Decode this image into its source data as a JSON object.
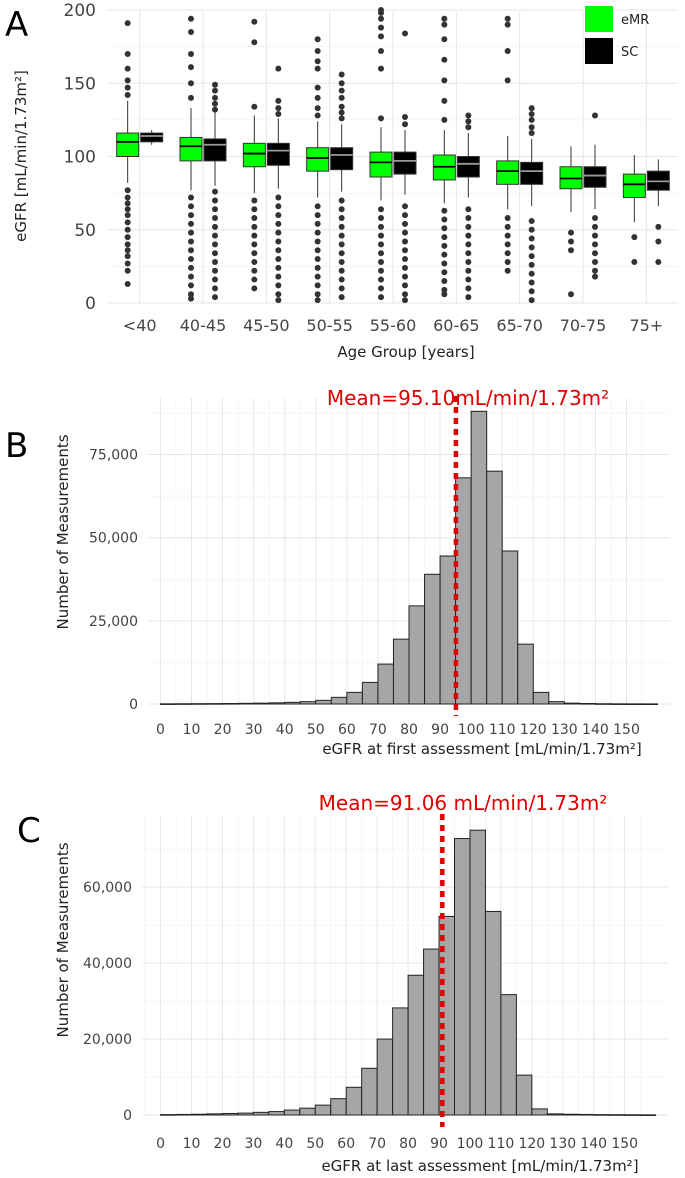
{
  "chart_data": [
    {
      "panel_label": "A",
      "type": "box",
      "xlabel": "Age Group [years]",
      "ylabel": "eGFR [mL/min/1.73m²]",
      "ylim": [
        0,
        200
      ],
      "yticks": [
        0,
        50,
        100,
        150,
        200
      ],
      "grid": true,
      "legend_position": "top-right",
      "colors": {
        "eMR": "#00ff00",
        "SC": "#000000",
        "median_on_eMR": "#000000",
        "median_on_SC": "#999999",
        "outlier": "#333333"
      },
      "categories": [
        "<40",
        "40-45",
        "45-50",
        "50-55",
        "55-60",
        "60-65",
        "65-70",
        "70-75",
        "75+"
      ],
      "series": [
        {
          "name": "eMR",
          "boxes": [
            {
              "whisker_low": 82,
              "q1": 100,
              "median": 110,
              "q3": 116,
              "whisker_high": 138,
              "outliers": [
                77,
                72,
                68,
                64,
                60,
                55,
                50,
                45,
                40,
                36,
                32,
                27,
                22,
                13,
                142,
                147,
                152,
                160,
                170,
                191
              ]
            },
            {
              "whisker_low": 77,
              "q1": 97,
              "median": 107,
              "q3": 113,
              "whisker_high": 133,
              "outliers": [
                72,
                66,
                60,
                54,
                48,
                42,
                36,
                30,
                24,
                18,
                12,
                6,
                3,
                140,
                150,
                161,
                170,
                185,
                194
              ]
            },
            {
              "whisker_low": 75,
              "q1": 93,
              "median": 102,
              "q3": 109,
              "whisker_high": 128,
              "outliers": [
                70,
                64,
                58,
                52,
                46,
                40,
                34,
                28,
                22,
                16,
                10,
                134,
                178,
                192
              ]
            },
            {
              "whisker_low": 72,
              "q1": 90,
              "median": 99,
              "q3": 106,
              "whisker_high": 124,
              "outliers": [
                66,
                60,
                54,
                48,
                42,
                36,
                30,
                24,
                18,
                12,
                6,
                2,
                128,
                133,
                140,
                147,
                160,
                165,
                172,
                180
              ]
            },
            {
              "whisker_low": 70,
              "q1": 86,
              "median": 96,
              "q3": 103,
              "whisker_high": 120,
              "outliers": [
                64,
                58,
                52,
                46,
                40,
                34,
                28,
                22,
                16,
                10,
                4,
                126,
                160,
                172,
                182,
                188,
                194,
                198,
                200
              ]
            },
            {
              "whisker_low": 68,
              "q1": 84,
              "median": 93,
              "q3": 101,
              "whisker_high": 118,
              "outliers": [
                63,
                57,
                51,
                45,
                39,
                33,
                27,
                21,
                15,
                9,
                6,
                125,
                138,
                152,
                166,
                180,
                190,
                194
              ]
            },
            {
              "whisker_low": 64,
              "q1": 81,
              "median": 90,
              "q3": 97,
              "whisker_high": 114,
              "outliers": [
                58,
                52,
                46,
                40,
                34,
                28,
                22,
                152,
                172,
                190,
                194
              ]
            },
            {
              "whisker_low": 62,
              "q1": 78,
              "median": 85,
              "q3": 93,
              "whisker_high": 107,
              "outliers": [
                48,
                42,
                36,
                6
              ]
            },
            {
              "whisker_low": 55,
              "q1": 72,
              "median": 81,
              "q3": 88,
              "whisker_high": 101,
              "outliers": [
                45,
                28
              ]
            }
          ]
        },
        {
          "name": "SC",
          "boxes": [
            {
              "whisker_low": 108,
              "q1": 110,
              "median": 114,
              "q3": 116,
              "whisker_high": 118,
              "outliers": []
            },
            {
              "whisker_low": 80,
              "q1": 97,
              "median": 108,
              "q3": 112,
              "whisker_high": 130,
              "outliers": [
                76,
                70,
                64,
                58,
                52,
                46,
                40,
                34,
                28,
                22,
                16,
                10,
                4,
                132,
                136,
                140,
                145,
                149
              ]
            },
            {
              "whisker_low": 78,
              "q1": 94,
              "median": 104,
              "q3": 109,
              "whisker_high": 126,
              "outliers": [
                72,
                66,
                60,
                54,
                48,
                42,
                36,
                30,
                24,
                18,
                12,
                6,
                2,
                129,
                133,
                138,
                160
              ]
            },
            {
              "whisker_low": 76,
              "q1": 91,
              "median": 101,
              "q3": 106,
              "whisker_high": 122,
              "outliers": [
                70,
                64,
                58,
                52,
                46,
                40,
                34,
                28,
                22,
                16,
                10,
                4,
                126,
                130,
                134,
                140,
                145,
                150,
                156
              ]
            },
            {
              "whisker_low": 74,
              "q1": 88,
              "median": 97,
              "q3": 103,
              "whisker_high": 118,
              "outliers": [
                66,
                60,
                54,
                48,
                42,
                36,
                30,
                24,
                18,
                12,
                6,
                2,
                122,
                127,
                184
              ]
            },
            {
              "whisker_low": 72,
              "q1": 86,
              "median": 95,
              "q3": 100,
              "whisker_high": 116,
              "outliers": [
                64,
                58,
                52,
                46,
                40,
                34,
                28,
                22,
                16,
                10,
                4,
                120,
                124,
                128
              ]
            },
            {
              "whisker_low": 66,
              "q1": 81,
              "median": 90,
              "q3": 96,
              "whisker_high": 112,
              "outliers": [
                56,
                50,
                44,
                38,
                32,
                26,
                20,
                14,
                8,
                2,
                116,
                120,
                125,
                129,
                133
              ]
            },
            {
              "whisker_low": 64,
              "q1": 79,
              "median": 87,
              "q3": 93,
              "whisker_high": 108,
              "outliers": [
                58,
                52,
                46,
                40,
                34,
                28,
                22,
                18,
                128
              ]
            },
            {
              "whisker_low": 66,
              "q1": 77,
              "median": 83,
              "q3": 90,
              "whisker_high": 98,
              "outliers": [
                52,
                42,
                28
              ]
            }
          ]
        }
      ]
    },
    {
      "panel_label": "B",
      "type": "bar",
      "title": "Mean=95.10mL/min/1.73m²",
      "mean_value": 95.1,
      "xlabel": "eGFR at first assessment [mL/min/1.73m²]",
      "ylabel": "Number of Measurements",
      "xlim": [
        -4,
        164
      ],
      "ylim": [
        0,
        92000
      ],
      "xticks": [
        0,
        10,
        20,
        30,
        40,
        50,
        60,
        70,
        80,
        90,
        100,
        110,
        120,
        130,
        140,
        150
      ],
      "xtick_labels": [
        "0",
        "10",
        "20",
        "30",
        "40",
        "50",
        "60",
        "70",
        "80",
        "90",
        "100",
        "110",
        "120",
        "130",
        "140",
        "150"
      ],
      "yticks": [
        0,
        25000,
        50000,
        75000
      ],
      "ytick_labels": [
        "0",
        "25,000",
        "50,000",
        "75,000"
      ],
      "grid": true,
      "bin_width": 5,
      "bin_starts": [
        0,
        5,
        10,
        15,
        20,
        25,
        30,
        35,
        40,
        45,
        50,
        55,
        60,
        65,
        70,
        75,
        80,
        85,
        90,
        95,
        100,
        105,
        110,
        115,
        120,
        125,
        130,
        135,
        140,
        145,
        150,
        155
      ],
      "values": [
        50,
        80,
        100,
        120,
        150,
        200,
        250,
        350,
        500,
        700,
        1100,
        2000,
        3500,
        6500,
        12000,
        19500,
        29500,
        39000,
        44500,
        68000,
        88000,
        70000,
        46000,
        18000,
        3500,
        700,
        250,
        150,
        80,
        50,
        40,
        30
      ],
      "colors": {
        "bar_fill": "#a6a6a6",
        "bar_stroke": "#222222",
        "mean_line": "#e00000"
      }
    },
    {
      "panel_label": "C",
      "type": "bar",
      "title": "Mean=91.06 mL/min/1.73m²",
      "mean_value": 91.06,
      "xlabel": "eGFR at last assessment [mL/min/1.73m²]",
      "ylabel": "Number of Measurements",
      "xlim": [
        -6,
        164
      ],
      "ylim": [
        0,
        79000
      ],
      "xticks": [
        0,
        10,
        20,
        30,
        40,
        50,
        60,
        70,
        80,
        90,
        100,
        110,
        120,
        130,
        140,
        150
      ],
      "xtick_labels": [
        "0",
        "10",
        "20",
        "30",
        "40",
        "50",
        "60",
        "70",
        "80",
        "90",
        "100",
        "110",
        "120",
        "130",
        "140",
        "150"
      ],
      "yticks": [
        0,
        20000,
        40000,
        60000
      ],
      "ytick_labels": [
        "0",
        "20,000",
        "40,000",
        "60,000"
      ],
      "grid": true,
      "bin_width": 5,
      "bin_starts": [
        0,
        5,
        10,
        15,
        20,
        25,
        30,
        35,
        40,
        45,
        50,
        55,
        60,
        65,
        70,
        75,
        80,
        85,
        90,
        95,
        100,
        105,
        110,
        115,
        120,
        125,
        130,
        135,
        140,
        145,
        150,
        155
      ],
      "values": [
        100,
        150,
        200,
        300,
        400,
        500,
        700,
        900,
        1300,
        1800,
        2600,
        4300,
        7300,
        12300,
        20000,
        28200,
        36800,
        43700,
        52300,
        72800,
        75000,
        53600,
        31700,
        10500,
        1600,
        300,
        200,
        150,
        100,
        80,
        60,
        40
      ],
      "colors": {
        "bar_fill": "#a6a6a6",
        "bar_stroke": "#222222",
        "mean_line": "#e00000"
      }
    }
  ]
}
